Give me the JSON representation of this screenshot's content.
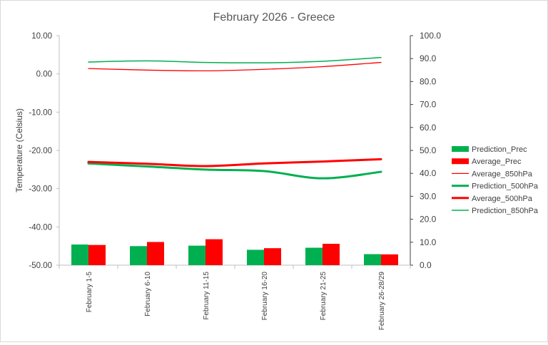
{
  "chart_data": {
    "type": "bar",
    "title": "February 2026 - Greece",
    "ylabel": "Temperature (Celsius)",
    "y2label": "",
    "xlabel": "",
    "categories": [
      "February 1-5",
      "February 6-10",
      "February 11-15",
      "February 16-20",
      "February 21-25",
      "February 26-28/29"
    ],
    "left_axis": {
      "min": -50,
      "max": 10,
      "step": 10,
      "tick_labels": [
        "-50.00",
        "-40.00",
        "-30.00",
        "-20.00",
        "-10.00",
        "0.00",
        "10.00"
      ]
    },
    "right_axis": {
      "min": 0,
      "max": 100,
      "step": 10,
      "tick_labels": [
        "0.0",
        "10.0",
        "20.0",
        "30.0",
        "40.0",
        "50.0",
        "60.0",
        "70.0",
        "80.0",
        "90.0",
        "100.0"
      ]
    },
    "grid": false,
    "legend_position": "right",
    "series": [
      {
        "name": "Prediction_Prec",
        "kind": "bar",
        "axis": "right",
        "color": "#00b050",
        "values": [
          9.0,
          8.3,
          8.5,
          6.7,
          7.6,
          4.8
        ]
      },
      {
        "name": "Average_Prec",
        "kind": "bar",
        "axis": "right",
        "color": "#ff0000",
        "values": [
          8.8,
          10.1,
          11.3,
          7.4,
          9.3,
          4.7
        ]
      },
      {
        "name": "Average_850hPa",
        "kind": "line",
        "axis": "left",
        "color": "#ff0000",
        "width": 1.3,
        "values": [
          1.4,
          1.0,
          0.8,
          1.2,
          1.9,
          3.0
        ]
      },
      {
        "name": "Prediction_500hPa",
        "kind": "line",
        "axis": "left",
        "color": "#00b050",
        "width": 3,
        "values": [
          -23.4,
          -24.2,
          -25.0,
          -25.4,
          -27.3,
          -25.6
        ]
      },
      {
        "name": "Average_500hPa",
        "kind": "line",
        "axis": "left",
        "color": "#ff0000",
        "width": 3,
        "values": [
          -23.0,
          -23.5,
          -24.1,
          -23.4,
          -22.9,
          -22.3
        ]
      },
      {
        "name": "Prediction_850hPa",
        "kind": "line",
        "axis": "left",
        "color": "#00b050",
        "width": 1.5,
        "values": [
          3.1,
          3.4,
          3.0,
          2.9,
          3.3,
          4.3
        ]
      }
    ]
  }
}
